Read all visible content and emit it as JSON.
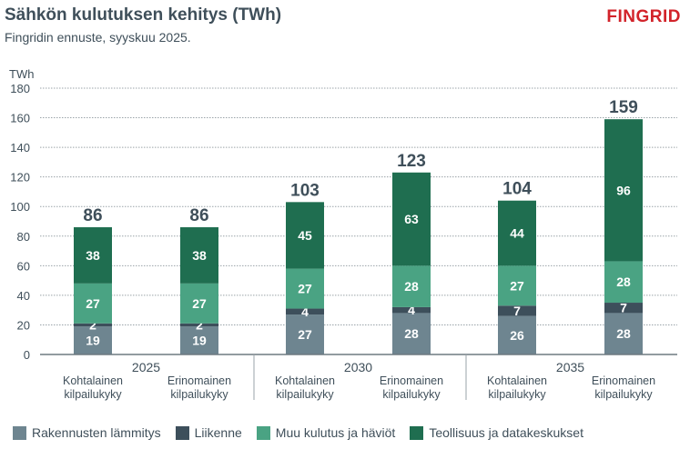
{
  "header": {
    "title": "Sähkön kulutuksen kehitys (TWh)",
    "subtitle": "Fingridin ennuste, syyskuu 2025.",
    "logo": "FINGRID"
  },
  "chart_data": {
    "type": "bar",
    "stacked": true,
    "ylabel": "TWh",
    "ylim": [
      0,
      180
    ],
    "yticks": [
      0,
      20,
      40,
      60,
      80,
      100,
      120,
      140,
      160,
      180
    ],
    "grid": true,
    "groups": [
      {
        "label": "2025",
        "categories": [
          "Kohtalainen kilpailukyky",
          "Erinomainen kilpailukyky"
        ]
      },
      {
        "label": "2030",
        "categories": [
          "Kohtalainen kilpailukyky",
          "Erinomainen kilpailukyky"
        ]
      },
      {
        "label": "2035",
        "categories": [
          "Kohtalainen kilpailukyky",
          "Erinomainen kilpailukyky"
        ]
      }
    ],
    "category_lines": [
      [
        "Kohtalainen",
        "kilpailukyky"
      ],
      [
        "Erinomainen",
        "kilpailukyky"
      ]
    ],
    "series": [
      {
        "name": "Rakennusten lämmitys",
        "color": "#6e8590",
        "values": [
          19,
          19,
          27,
          28,
          26,
          28
        ]
      },
      {
        "name": "Liikenne",
        "color": "#3d4f5b",
        "values": [
          2,
          2,
          4,
          4,
          7,
          7
        ]
      },
      {
        "name": "Muu kulutus ja häviöt",
        "color": "#4aa383",
        "values": [
          27,
          27,
          27,
          28,
          27,
          28
        ]
      },
      {
        "name": "Teollisuus ja datakeskukset",
        "color": "#1f6e50",
        "values": [
          38,
          38,
          45,
          63,
          44,
          96
        ]
      }
    ],
    "totals": [
      86,
      86,
      103,
      123,
      104,
      159
    ],
    "legend": "bottom"
  }
}
